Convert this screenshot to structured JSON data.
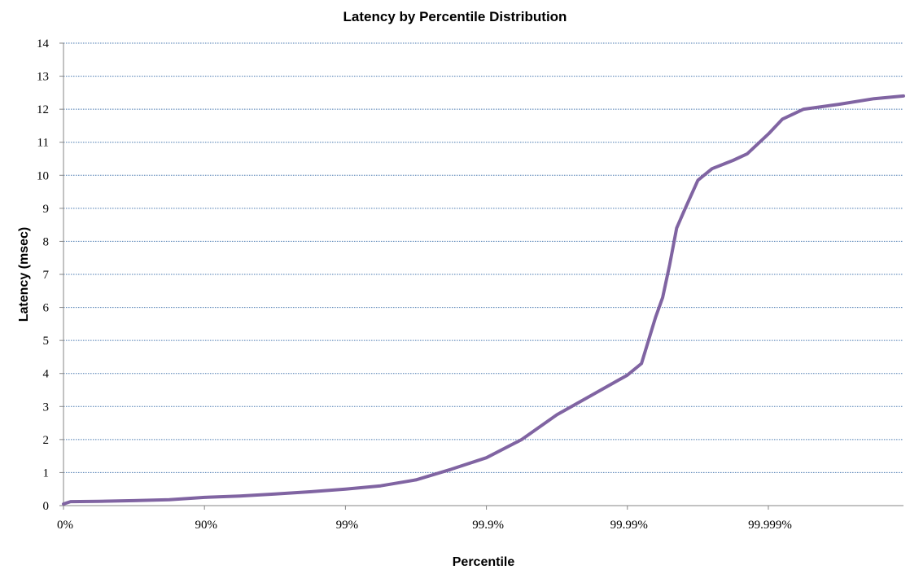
{
  "chart_data": {
    "type": "line",
    "title": "Latency by Percentile Distribution",
    "xlabel": "Percentile",
    "ylabel": "Latency  (msec)",
    "x_scale": "log of 1/(1-percentile)",
    "xlim": [
      0,
      99.99989
    ],
    "ylim": [
      0,
      14
    ],
    "y_ticks": [
      0,
      1,
      2,
      3,
      4,
      5,
      6,
      7,
      8,
      9,
      10,
      11,
      12,
      13,
      14
    ],
    "x_ticks": [
      {
        "value": 0,
        "label": "0%"
      },
      {
        "value": 90,
        "label": "90%"
      },
      {
        "value": 99,
        "label": "99%"
      },
      {
        "value": 99.9,
        "label": "99.9%"
      },
      {
        "value": 99.99,
        "label": "99.99%"
      },
      {
        "value": 99.999,
        "label": "99.999%"
      }
    ],
    "grid": "horizontal dotted",
    "legend": "none",
    "colors": {
      "line": "#8064a2",
      "grid": "#4a7ab0",
      "axis": "#868686"
    },
    "series": [
      {
        "x": [
          0,
          10.87,
          43.77,
          68.38,
          82.22,
          90,
          94.38,
          96.84,
          98.22,
          99,
          99.438,
          99.684,
          99.822,
          99.9,
          99.9438,
          99.9684,
          99.9822,
          99.99,
          99.99206,
          99.99369,
          99.99438,
          99.99499,
          99.99553,
          99.99602,
          99.99684,
          99.99749,
          99.99822,
          99.998587,
          99.999,
          99.9992057,
          99.9994377,
          99.9996838,
          99.9998222,
          99.99989
        ],
        "y": [
          0.05,
          0.12,
          0.13,
          0.15,
          0.18,
          0.25,
          0.29,
          0.35,
          0.42,
          0.5,
          0.6,
          0.78,
          1.1,
          1.45,
          2.0,
          2.75,
          3.35,
          3.95,
          4.3,
          5.7,
          6.3,
          7.3,
          8.4,
          8.9,
          9.85,
          10.2,
          10.45,
          10.65,
          11.25,
          11.7,
          12.0,
          12.15,
          12.32,
          12.4
        ]
      }
    ]
  }
}
